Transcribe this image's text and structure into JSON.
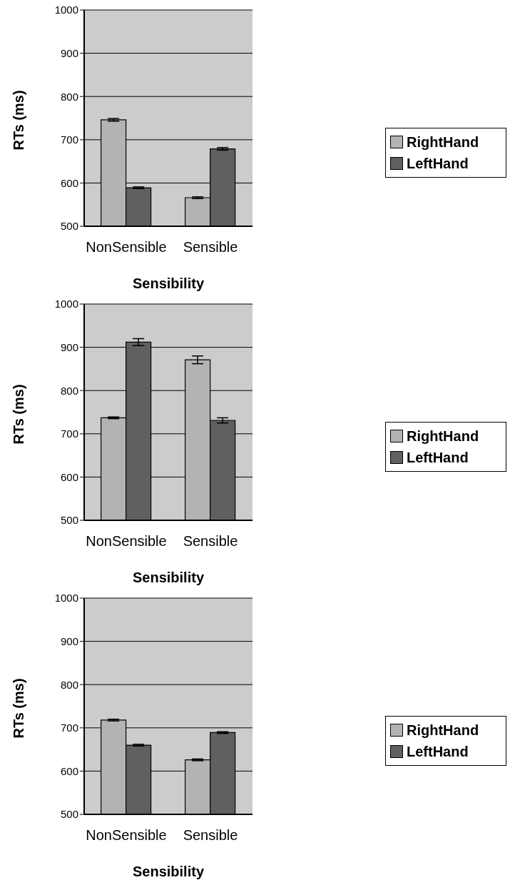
{
  "chart_data": [
    {
      "type": "bar",
      "xlabel": "Sensibility",
      "ylabel": "RTs (ms)",
      "categories": [
        "NonSensible",
        "Sensible"
      ],
      "series": [
        {
          "name": "RightHand",
          "color": "#b3b3b3",
          "values": [
            746,
            566
          ],
          "errors": [
            3,
            2
          ]
        },
        {
          "name": "LeftHand",
          "color": "#606060",
          "values": [
            589,
            679
          ],
          "errors": [
            2,
            3
          ]
        }
      ],
      "ylim": [
        500,
        1000
      ],
      "yticks": [
        500,
        600,
        700,
        800,
        900,
        1000
      ],
      "grid": "y",
      "legend": "right"
    },
    {
      "type": "bar",
      "xlabel": "Sensibility",
      "ylabel": "RTs (ms)",
      "categories": [
        "NonSensible",
        "Sensible"
      ],
      "series": [
        {
          "name": "RightHand",
          "color": "#b3b3b3",
          "values": [
            737,
            871
          ],
          "errors": [
            2,
            9
          ]
        },
        {
          "name": "LeftHand",
          "color": "#606060",
          "values": [
            912,
            731
          ],
          "errors": [
            8,
            6
          ]
        }
      ],
      "ylim": [
        500,
        1000
      ],
      "yticks": [
        500,
        600,
        700,
        800,
        900,
        1000
      ],
      "grid": "y",
      "legend": "right"
    },
    {
      "type": "bar",
      "xlabel": "Sensibility",
      "ylabel": "RTs (ms)",
      "categories": [
        "NonSensible",
        "Sensible"
      ],
      "series": [
        {
          "name": "RightHand",
          "color": "#b3b3b3",
          "values": [
            718,
            626
          ],
          "errors": [
            2,
            2
          ]
        },
        {
          "name": "LeftHand",
          "color": "#606060",
          "values": [
            660,
            689
          ],
          "errors": [
            2,
            2
          ]
        }
      ],
      "ylim": [
        500,
        1000
      ],
      "yticks": [
        500,
        600,
        700,
        800,
        900,
        1000
      ],
      "grid": "y",
      "legend": "right"
    }
  ]
}
